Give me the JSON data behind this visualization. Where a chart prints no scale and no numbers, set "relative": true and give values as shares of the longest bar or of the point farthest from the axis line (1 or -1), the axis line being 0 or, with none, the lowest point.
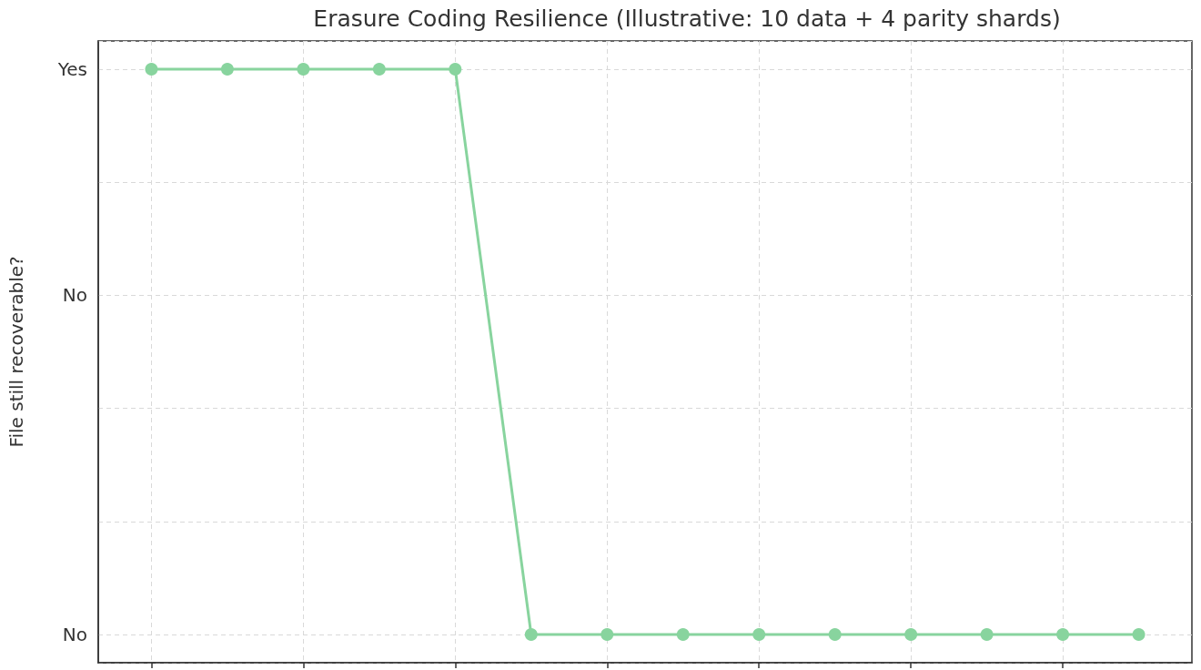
{
  "chart_data": {
    "type": "line",
    "title": "Erasure Coding Resilience (Illustrative: 10 data + 4 parity shards)",
    "ylabel": "File still recoverable?",
    "categories": [
      null,
      null,
      null,
      null,
      null,
      null,
      null,
      null,
      null,
      null,
      null,
      null,
      null,
      null
    ],
    "values": [
      1,
      1,
      1,
      1,
      1,
      0,
      0,
      0,
      0,
      0,
      0,
      0,
      0,
      0
    ],
    "color": "#88d49e",
    "relative": true,
    "annotations": [
      "Yes",
      "No",
      "No"
    ],
    "grid": true,
    "marker": "circle",
    "line_style": "solid"
  }
}
